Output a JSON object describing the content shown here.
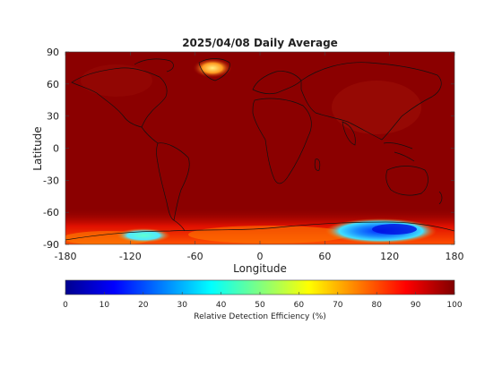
{
  "title": "2025/04/08 Daily Average",
  "map": {
    "xlabel": "Longitude",
    "ylabel": "Latitude",
    "xlim": [
      -180,
      180
    ],
    "ylim": [
      -90,
      90
    ],
    "xticks": [
      -180,
      -120,
      -60,
      0,
      60,
      120,
      180
    ],
    "yticks": [
      90,
      60,
      30,
      0,
      -30,
      -60,
      -90
    ],
    "xtick_labels": [
      "-180",
      "-120",
      "-60",
      "0",
      "60",
      "120",
      "180"
    ],
    "ytick_labels": [
      "90",
      "60",
      "30",
      "0",
      "-30",
      "-60",
      "-90"
    ],
    "background_value": 100,
    "colormap": "jet",
    "features": [
      {
        "region": "Greenland",
        "lon": -40,
        "lat": 75,
        "value": 75
      },
      {
        "region": "West Antarctica",
        "lon": -105,
        "lat": -85,
        "value": 45
      },
      {
        "region": "East Antarctica",
        "lon": 110,
        "lat": -82,
        "value": 15
      }
    ]
  },
  "colorbar": {
    "label": "Relative Detection Efficiency (%)",
    "min": 0,
    "max": 100,
    "ticks": [
      0,
      10,
      20,
      30,
      40,
      50,
      60,
      70,
      80,
      90,
      100
    ],
    "tick_labels": [
      "0",
      "10",
      "20",
      "30",
      "40",
      "50",
      "60",
      "70",
      "80",
      "90",
      "100"
    ]
  }
}
